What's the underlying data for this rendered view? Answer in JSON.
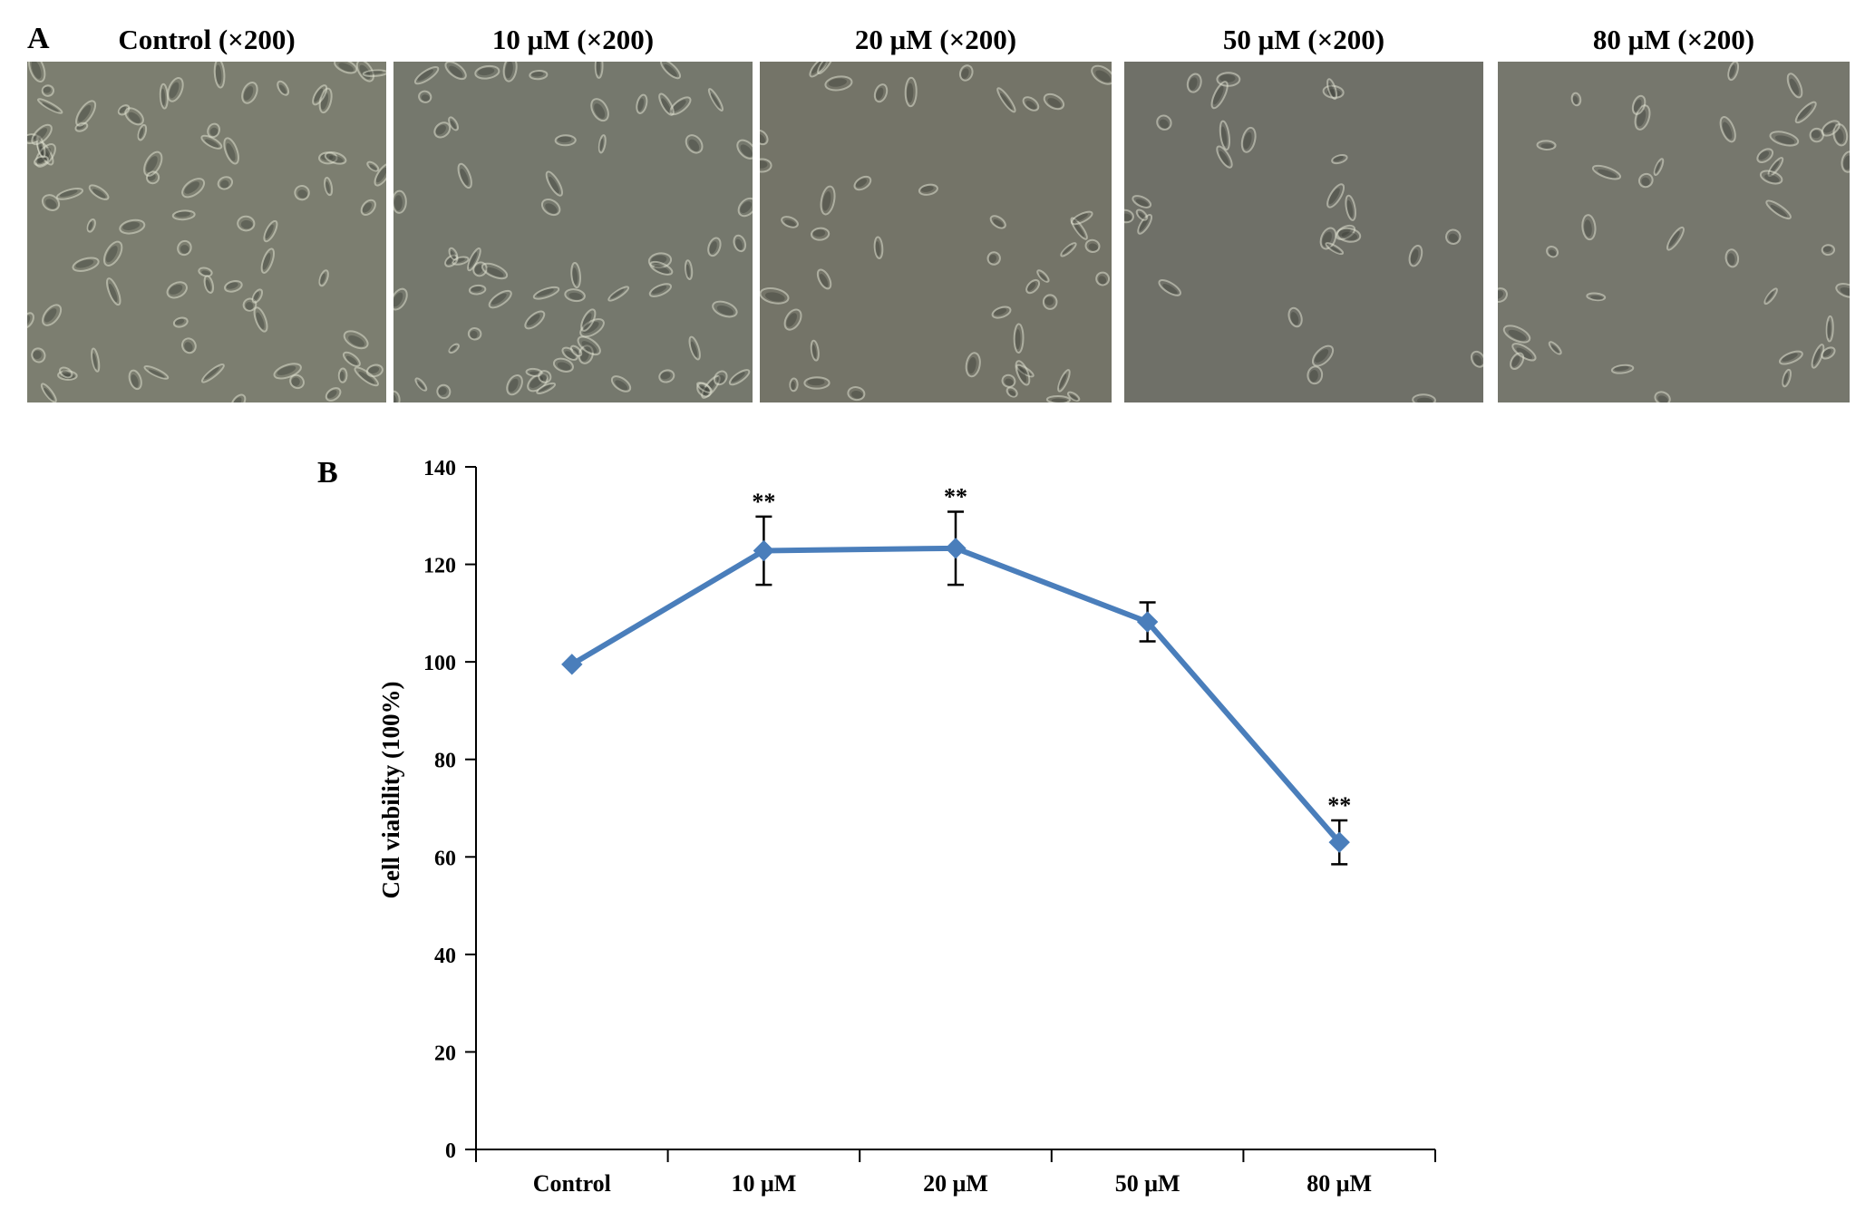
{
  "panel_a": {
    "label": "A",
    "images": [
      {
        "title": "Control (×200)",
        "tone": "#7c7e70"
      },
      {
        "title": "10 μM (×200)",
        "tone": "#75786d"
      },
      {
        "title": "20 μM (×200)",
        "tone": "#747468"
      },
      {
        "title": "50 μM (×200)",
        "tone": "#6f7068"
      },
      {
        "title": "80 μM (×200)",
        "tone": "#76776d"
      }
    ]
  },
  "panel_b": {
    "label": "B"
  },
  "chart_data": {
    "type": "line",
    "categories": [
      "Control",
      "10 μM",
      "20  μM",
      "50 μM",
      "80 μM"
    ],
    "series": [
      {
        "values": [
          99.5,
          122.8,
          123.3,
          108.2,
          63.0
        ],
        "error": [
          0,
          7.0,
          7.5,
          4.0,
          4.5
        ],
        "annotations": [
          "",
          "**",
          "**",
          "",
          "**"
        ],
        "color": "#4a7ebb",
        "marker": "diamond"
      }
    ],
    "ylabel": "Cell viability (100%)",
    "xlabel": "",
    "ylim": [
      0,
      140
    ],
    "yticks": [
      0,
      20,
      40,
      60,
      80,
      100,
      120,
      140
    ],
    "grid": false,
    "legend": "none"
  }
}
